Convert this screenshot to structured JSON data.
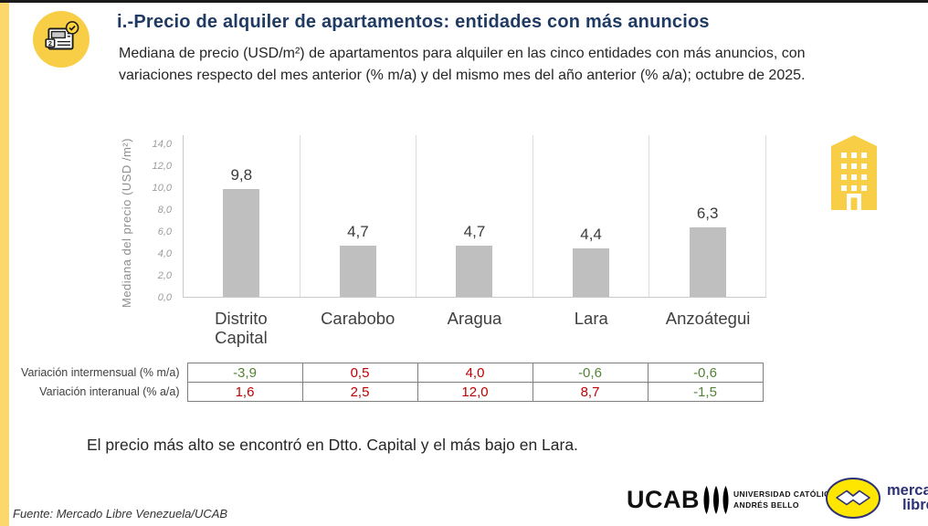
{
  "page": {
    "title": "i.-Precio de alquiler de apartamentos: entidades con más anuncios",
    "subtitle": "Mediana de precio (USD/m²) de apartamentos para alquiler en las cinco entidades con más anuncios, con variaciones respecto del mes anterior (% m/a) y del mismo mes del año anterior (% a/a); octubre de 2025.",
    "note": "El precio más alto se encontró en Dtto. Capital y el más bajo en Lara.",
    "source": "Fuente: Mercado Libre Venezuela/UCAB"
  },
  "chart_data": {
    "type": "bar",
    "title": "",
    "categories": [
      "Distrito Capital",
      "Carabobo",
      "Aragua",
      "Lara",
      "Anzoátegui"
    ],
    "values": [
      9.8,
      4.7,
      4.7,
      4.4,
      6.3
    ],
    "value_labels": [
      "9,8",
      "4,7",
      "4,7",
      "4,4",
      "6,3"
    ],
    "ylabel": "Mediana del precio (USD /m²)",
    "xlabel": "",
    "y_ticks": [
      "0,0",
      "2,0",
      "4,0",
      "6,0",
      "8,0",
      "10,0",
      "12,0",
      "14,0"
    ],
    "ylim": [
      0,
      14
    ],
    "grid": "vertical-category-separators",
    "legend": "none",
    "bar_color": "#BFBFBF"
  },
  "table": {
    "rows": [
      {
        "label": "Variación intermensual (% m/a)",
        "values": [
          "-3,9",
          "0,5",
          "4,0",
          "-0,6",
          "-0,6"
        ]
      },
      {
        "label": "Variación interanual (% a/a)",
        "values": [
          "1,6",
          "2,5",
          "12,0",
          "8,7",
          "-1,5"
        ]
      }
    ],
    "positive_color": "#C00000",
    "negative_color": "#548235"
  },
  "logos": {
    "ucab": {
      "acronym": "UCAB",
      "line1": "UNIVERSIDAD CATÓLICA",
      "line2": "ANDRÉS BELLO"
    },
    "mercado_libre": {
      "line1": "mercado",
      "line2": "libre"
    }
  },
  "colors": {
    "title_navy": "#1F3A63",
    "accent_yellow": "#F7CE46",
    "stripe_yellow": "#FBD76C",
    "bar_gray": "#BFBFBF",
    "ml_yellow": "#FFE600",
    "ml_blue": "#2D3277"
  }
}
